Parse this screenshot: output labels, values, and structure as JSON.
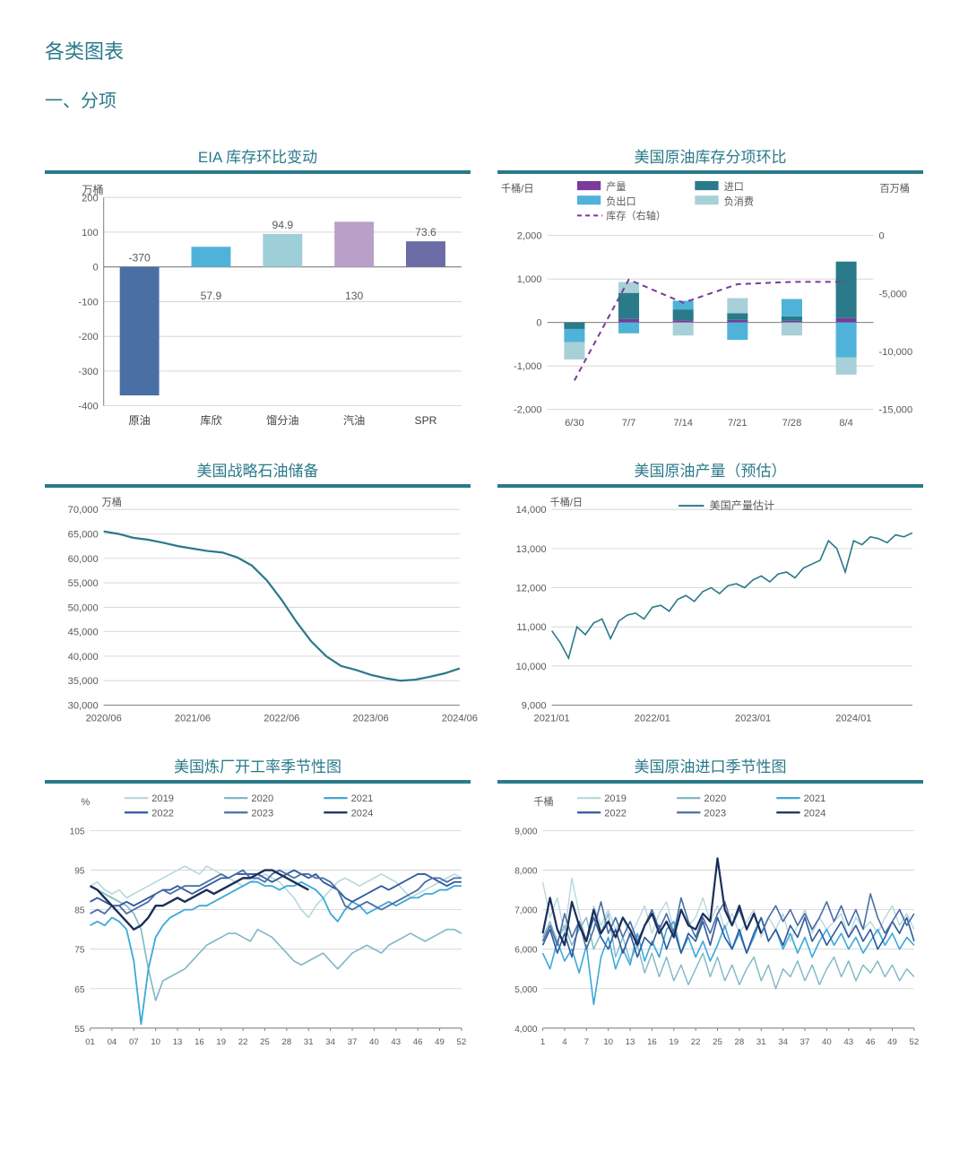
{
  "page_title": "各类图表",
  "section_title": "一、分项",
  "colors": {
    "brand": "#2a7a8a",
    "axis": "#808080",
    "grid": "#d0d0d0",
    "text": "#595959"
  },
  "chart1": {
    "title": "EIA 库存环比变动",
    "type": "bar",
    "y_unit": "万桶",
    "categories": [
      "原油",
      "库欣",
      "馏分油",
      "汽油",
      "SPR"
    ],
    "values": [
      -370,
      57.9,
      94.9,
      130,
      73.6
    ],
    "value_labels": [
      "-370",
      "57.9",
      "94.9",
      "130",
      "73.6"
    ],
    "bar_colors": [
      "#4a6fa5",
      "#4fb3d9",
      "#9ecfd9",
      "#b9a0c9",
      "#6b6ba5"
    ],
    "ylim": [
      -400,
      200
    ],
    "ytick_step": 100,
    "bar_width": 0.55,
    "background": "#ffffff",
    "axis_color": "#808080",
    "grid_color": "#d0d0d0",
    "label_fontsize": 12
  },
  "chart2": {
    "title": "美国原油库存分项环比",
    "type": "stacked-bar-with-line",
    "left_unit": "千桶/日",
    "right_unit": "百万桶",
    "categories": [
      "6/30",
      "7/7",
      "7/14",
      "7/21",
      "7/28",
      "8/4"
    ],
    "legend": [
      {
        "label": "产量",
        "color": "#7a3b9a",
        "type": "bar"
      },
      {
        "label": "进口",
        "color": "#2a7a8a",
        "type": "bar"
      },
      {
        "label": "负出口",
        "color": "#4fb3d9",
        "type": "bar"
      },
      {
        "label": "负消费",
        "color": "#a8d0d8",
        "type": "bar"
      },
      {
        "label": "库存（右轴）",
        "color": "#7a3b9a",
        "type": "dashed-line"
      }
    ],
    "segments_per_cat": {
      "产量": [
        0,
        80,
        50,
        60,
        40,
        100
      ],
      "进口": [
        -150,
        600,
        250,
        150,
        100,
        1300
      ],
      "负出口": [
        -300,
        -250,
        200,
        -400,
        400,
        -800
      ],
      "负消费": [
        -400,
        250,
        -300,
        350,
        -300,
        -400
      ]
    },
    "line_right": [
      -12500,
      -3800,
      -5800,
      -4200,
      -4000,
      -4000
    ],
    "ylim_left": [
      -2000,
      2000
    ],
    "ytick_left_step": 1000,
    "ylim_right": [
      -15000,
      0
    ],
    "ytick_right_step": 5000,
    "background": "#ffffff",
    "grid_color": "#d0d0d0",
    "label_fontsize": 11
  },
  "chart3": {
    "title": "美国战略石油储备",
    "type": "line",
    "y_unit": "万桶",
    "x_labels": [
      "2020/06",
      "2021/06",
      "2022/06",
      "2023/06",
      "2024/06"
    ],
    "x_points": [
      0,
      12,
      24,
      36,
      48
    ],
    "ylim": [
      30000,
      70000
    ],
    "ytick_step": 5000,
    "line_color": "#2a7a8a",
    "line_width": 2.2,
    "data": {
      "x": [
        0,
        2,
        4,
        6,
        8,
        10,
        12,
        14,
        16,
        18,
        20,
        22,
        24,
        26,
        28,
        30,
        32,
        34,
        36,
        38,
        40,
        42,
        44,
        46,
        48
      ],
      "y": [
        65500,
        65000,
        64200,
        63800,
        63200,
        62500,
        62000,
        61500,
        61200,
        60200,
        58500,
        55500,
        51500,
        47000,
        43000,
        40000,
        38000,
        37200,
        36200,
        35500,
        35000,
        35200,
        35800,
        36500,
        37500
      ]
    },
    "background": "#ffffff",
    "grid_color": "#d0d0d0"
  },
  "chart4": {
    "title": "美国原油产量（预估）",
    "type": "line",
    "y_unit": "千桶/日",
    "legend_label": "美国产量估计",
    "x_labels": [
      "2021/01",
      "2022/01",
      "2023/01",
      "2024/01"
    ],
    "x_points": [
      0,
      12,
      24,
      36
    ],
    "x_max": 43,
    "ylim": [
      9000,
      14000
    ],
    "ytick_step": 1000,
    "line_color": "#2a7a8a",
    "line_width": 1.6,
    "data": {
      "x": [
        0,
        1,
        2,
        3,
        4,
        5,
        6,
        7,
        8,
        9,
        10,
        11,
        12,
        13,
        14,
        15,
        16,
        17,
        18,
        19,
        20,
        21,
        22,
        23,
        24,
        25,
        26,
        27,
        28,
        29,
        30,
        31,
        32,
        33,
        34,
        35,
        36,
        37,
        38,
        39,
        40,
        41,
        42,
        43
      ],
      "y": [
        10900,
        10600,
        10200,
        11000,
        10800,
        11100,
        11200,
        10700,
        11150,
        11300,
        11350,
        11200,
        11500,
        11550,
        11400,
        11700,
        11800,
        11650,
        11900,
        12000,
        11850,
        12050,
        12100,
        12000,
        12200,
        12300,
        12150,
        12350,
        12400,
        12250,
        12500,
        12600,
        12700,
        13200,
        13000,
        12400,
        13200,
        13100,
        13300,
        13250,
        13150,
        13350,
        13300,
        13400
      ]
    },
    "background": "#ffffff",
    "grid_color": "#d0d0d0"
  },
  "chart5": {
    "title": "美国炼厂开工率季节性图",
    "type": "multi-line",
    "y_unit": "%",
    "x_labels": [
      "01",
      "04",
      "07",
      "10",
      "13",
      "16",
      "19",
      "22",
      "25",
      "28",
      "31",
      "34",
      "37",
      "40",
      "43",
      "46",
      "49",
      "52"
    ],
    "ylim": [
      55,
      105
    ],
    "ytick_step": 10,
    "series": [
      {
        "name": "2019",
        "color": "#b8d8dd",
        "width": 1.6,
        "y": [
          91,
          92,
          90,
          89,
          90,
          88,
          89,
          90,
          91,
          92,
          93,
          94,
          95,
          96,
          95,
          94,
          96,
          95,
          94,
          93,
          92,
          91,
          92,
          93,
          94,
          93,
          92,
          90,
          88,
          85,
          83,
          86,
          88,
          90,
          92,
          93,
          92,
          91,
          92,
          93,
          94,
          93,
          92,
          90,
          88,
          89,
          90,
          91,
          92,
          93,
          94,
          93
        ]
      },
      {
        "name": "2020",
        "color": "#7fb8c4",
        "width": 1.6,
        "y": [
          91,
          90,
          89,
          88,
          87,
          86,
          84,
          80,
          70,
          62,
          67,
          68,
          69,
          70,
          72,
          74,
          76,
          77,
          78,
          79,
          79,
          78,
          77,
          80,
          79,
          78,
          76,
          74,
          72,
          71,
          72,
          73,
          74,
          72,
          70,
          72,
          74,
          75,
          76,
          75,
          74,
          76,
          77,
          78,
          79,
          78,
          77,
          78,
          79,
          80,
          80,
          79
        ]
      },
      {
        "name": "2021",
        "color": "#3da9d9",
        "width": 1.8,
        "y": [
          81,
          82,
          81,
          83,
          82,
          80,
          72,
          56,
          70,
          78,
          81,
          83,
          84,
          85,
          85,
          86,
          86,
          87,
          88,
          89,
          90,
          91,
          92,
          92,
          91,
          91,
          90,
          91,
          91,
          92,
          91,
          90,
          88,
          84,
          82,
          85,
          87,
          86,
          84,
          85,
          86,
          87,
          86,
          87,
          88,
          88,
          89,
          89,
          90,
          90,
          91,
          91
        ]
      },
      {
        "name": "2022",
        "color": "#2e5a9e",
        "width": 1.8,
        "y": [
          87,
          88,
          87,
          86,
          86,
          87,
          86,
          87,
          88,
          89,
          90,
          90,
          91,
          90,
          89,
          90,
          91,
          92,
          93,
          93,
          94,
          94,
          94,
          94,
          93,
          92,
          93,
          94,
          95,
          94,
          93,
          94,
          92,
          91,
          90,
          88,
          87,
          88,
          89,
          90,
          91,
          90,
          91,
          92,
          93,
          94,
          94,
          93,
          92,
          91,
          92,
          92
        ]
      },
      {
        "name": "2023",
        "color": "#4a6fa5",
        "width": 1.8,
        "y": [
          84,
          85,
          84,
          86,
          86,
          84,
          85,
          86,
          87,
          89,
          90,
          89,
          90,
          91,
          91,
          91,
          92,
          93,
          94,
          93,
          94,
          95,
          93,
          93,
          92,
          94,
          95,
          94,
          93,
          94,
          94,
          93,
          93,
          92,
          90,
          86,
          85,
          86,
          87,
          86,
          85,
          86,
          87,
          88,
          89,
          90,
          92,
          93,
          93,
          92,
          93,
          93
        ]
      },
      {
        "name": "2024",
        "color": "#1a2f5a",
        "width": 2.4,
        "y": [
          91,
          90,
          88,
          86,
          84,
          82,
          80,
          81,
          83,
          86,
          86,
          87,
          88,
          87,
          88,
          89,
          90,
          89,
          90,
          91,
          92,
          93,
          93,
          94,
          95,
          95,
          94,
          93,
          92,
          91,
          90
        ]
      }
    ],
    "background": "#ffffff",
    "grid_color": "#d0d0d0"
  },
  "chart6": {
    "title": "美国原油进口季节性图",
    "type": "multi-line",
    "y_unit": "千桶",
    "x_labels": [
      "1",
      "4",
      "7",
      "10",
      "13",
      "16",
      "19",
      "22",
      "25",
      "28",
      "31",
      "34",
      "37",
      "40",
      "43",
      "46",
      "49",
      "52"
    ],
    "ylim": [
      4000,
      9000
    ],
    "ytick_step": 1000,
    "series": [
      {
        "name": "2019",
        "color": "#b8d8dd",
        "width": 1.4,
        "y": [
          7700,
          6800,
          7300,
          6400,
          7800,
          6900,
          6200,
          7100,
          6600,
          7000,
          6500,
          6800,
          6300,
          6700,
          7100,
          6400,
          6900,
          7200,
          6500,
          7000,
          6600,
          6800,
          7300,
          6700,
          7100,
          6500,
          6900,
          6400,
          6700,
          7000,
          6300,
          6800,
          6500,
          6900,
          6200,
          6600,
          7000,
          6400,
          6800,
          6500,
          6700,
          6900,
          6300,
          6800,
          6500,
          6700,
          6400,
          6800,
          7100,
          6600,
          6900,
          6500
        ]
      },
      {
        "name": "2020",
        "color": "#7fb8c4",
        "width": 1.4,
        "y": [
          6300,
          6700,
          6200,
          6600,
          6100,
          6500,
          6800,
          6000,
          6400,
          6900,
          5800,
          6300,
          5700,
          6100,
          5400,
          5900,
          5300,
          5800,
          5200,
          5600,
          5100,
          5500,
          5900,
          5300,
          5800,
          5200,
          5600,
          5100,
          5500,
          5800,
          5200,
          5600,
          5000,
          5500,
          5300,
          5700,
          5200,
          5600,
          5100,
          5500,
          5800,
          5300,
          5700,
          5200,
          5600,
          5400,
          5700,
          5300,
          5600,
          5200,
          5500,
          5300
        ]
      },
      {
        "name": "2021",
        "color": "#3da9d9",
        "width": 1.6,
        "y": [
          5900,
          5500,
          6200,
          5700,
          6000,
          5400,
          6100,
          4600,
          5800,
          6300,
          5500,
          6000,
          5600,
          6400,
          5700,
          6200,
          5800,
          6500,
          6700,
          5900,
          6300,
          5800,
          6200,
          5700,
          6100,
          6600,
          6000,
          6400,
          5900,
          6300,
          6800,
          6200,
          6500,
          6000,
          6400,
          5900,
          6300,
          5800,
          6200,
          6500,
          6100,
          6400,
          6000,
          6300,
          5900,
          6200,
          6500,
          6100,
          6400,
          6000,
          6300,
          6100
        ]
      },
      {
        "name": "2022",
        "color": "#2e5a9e",
        "width": 1.6,
        "y": [
          6100,
          6500,
          5900,
          6400,
          5800,
          6700,
          6200,
          6800,
          6300,
          6000,
          6500,
          5900,
          6400,
          5800,
          6300,
          6100,
          6600,
          6000,
          6500,
          5900,
          6400,
          6200,
          6700,
          6100,
          6800,
          6300,
          6000,
          6500,
          5900,
          6400,
          6800,
          6200,
          6500,
          6100,
          6600,
          6300,
          6800,
          6200,
          6500,
          6100,
          6400,
          6700,
          6300,
          6600,
          6200,
          6500,
          6000,
          6300,
          6700,
          6400,
          6800,
          6200
        ]
      },
      {
        "name": "2023",
        "color": "#4a6fa5",
        "width": 1.6,
        "y": [
          6200,
          6600,
          6100,
          6900,
          6300,
          6700,
          6000,
          6500,
          7200,
          6400,
          6800,
          6300,
          6700,
          6200,
          6600,
          7000,
          6500,
          6900,
          6400,
          7300,
          6700,
          6300,
          6800,
          6400,
          6900,
          7200,
          6600,
          7000,
          6500,
          6900,
          6400,
          6800,
          7100,
          6700,
          7000,
          6600,
          6900,
          6500,
          6800,
          7200,
          6700,
          7100,
          6600,
          7000,
          6500,
          7400,
          6800,
          6400,
          6700,
          7000,
          6600,
          6900
        ]
      },
      {
        "name": "2024",
        "color": "#1a2f5a",
        "width": 2.2,
        "y": [
          6400,
          7300,
          6500,
          6100,
          7200,
          6600,
          6200,
          7000,
          6400,
          6700,
          6300,
          6800,
          6500,
          6100,
          6600,
          6900,
          6400,
          6700,
          6300,
          7000,
          6600,
          6500,
          6900,
          6700,
          8300,
          7000,
          6600,
          7100,
          6500,
          6900,
          6400
        ]
      }
    ],
    "background": "#ffffff",
    "grid_color": "#d0d0d0"
  }
}
